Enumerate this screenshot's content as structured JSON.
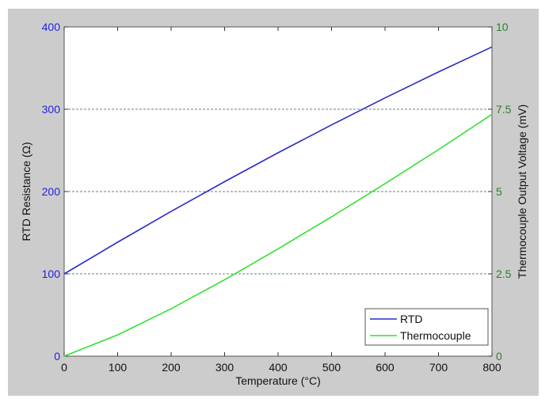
{
  "chart_data": {
    "type": "line",
    "xlabel": "Temperature (°C)",
    "ylabel_left": "RTD Resistance (Ω)",
    "ylabel_right": "Thermocouple Output Voltage (mV)",
    "xlim": [
      0,
      800
    ],
    "ylim_left": [
      0,
      400
    ],
    "ylim_right": [
      0,
      10
    ],
    "xticks": [
      "0",
      "100",
      "200",
      "300",
      "400",
      "500",
      "600",
      "700",
      "800"
    ],
    "yticks_left": [
      "0",
      "100",
      "200",
      "300",
      "400"
    ],
    "yticks_right": [
      "0",
      "2.5",
      "5",
      "7.5",
      "10"
    ],
    "grid": "horizontal dashed",
    "legend_position": "bottom-right",
    "x": [
      0,
      100,
      200,
      300,
      400,
      500,
      600,
      700,
      800
    ],
    "series": [
      {
        "name": "RTD",
        "axis": "left",
        "color": "#2b2bcc",
        "values": [
          100,
          138.5,
          175.86,
          212.05,
          247.09,
          280.98,
          313.71,
          345.28,
          375.7
        ]
      },
      {
        "name": "Thermocouple",
        "axis": "right",
        "color": "#33e033",
        "values": [
          0,
          0.646,
          1.441,
          2.323,
          3.259,
          4.233,
          5.239,
          6.275,
          7.345
        ]
      }
    ],
    "colors": {
      "left_axis": "#2222dd",
      "right_axis": "#2e7d2e",
      "background": "#cccccc",
      "grid": "#2e5e5e"
    }
  }
}
